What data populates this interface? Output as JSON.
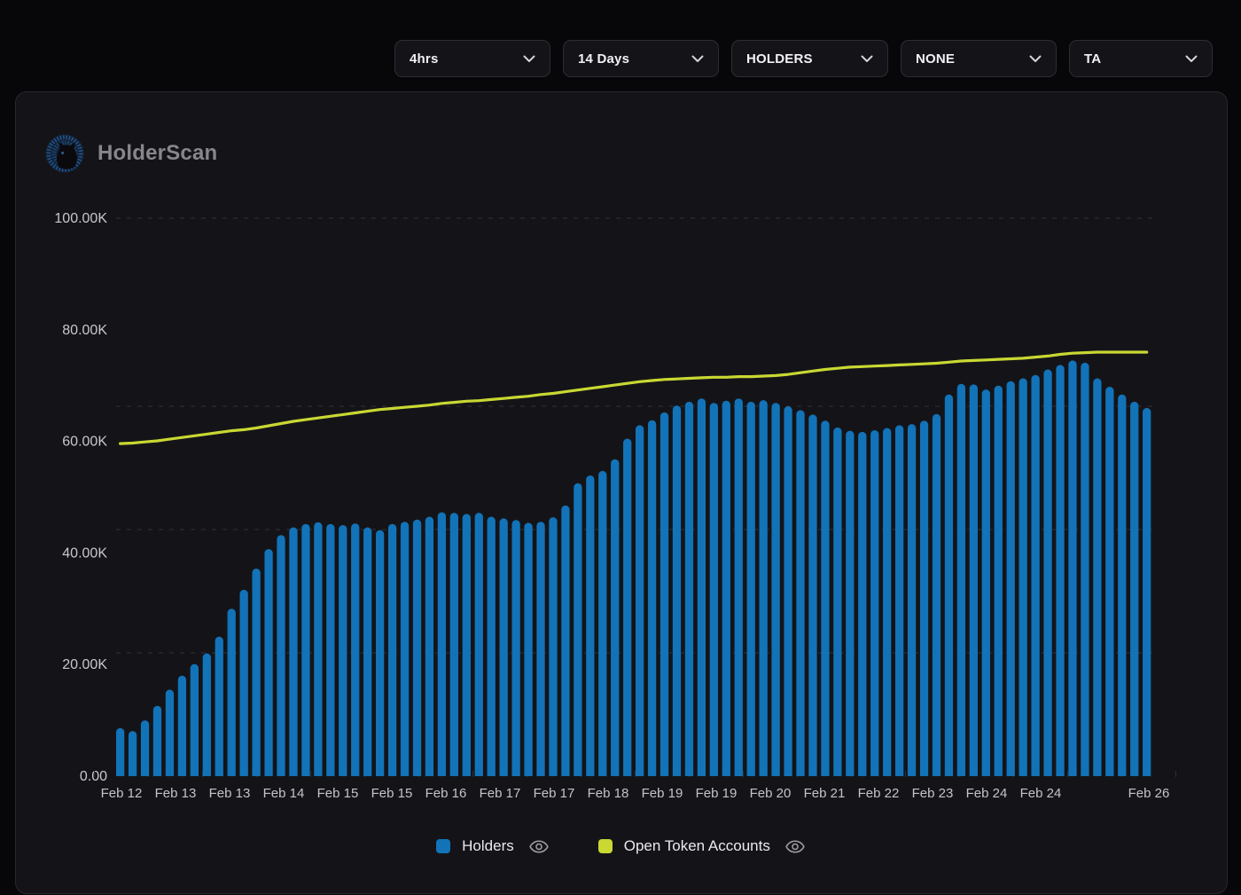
{
  "controls": {
    "dropdowns": [
      {
        "id": "interval",
        "label": "4hrs"
      },
      {
        "id": "range",
        "label": "14 Days"
      },
      {
        "id": "metric",
        "label": "HOLDERS"
      },
      {
        "id": "overlay",
        "label": "NONE"
      },
      {
        "id": "ta",
        "label": "TA"
      }
    ]
  },
  "logo": {
    "text": "HolderScan"
  },
  "colors": {
    "page_bg": "#07070a",
    "panel_bg": "#141418",
    "panel_border": "#27272d",
    "grid": "#4a4a52",
    "axis_text": "#c7c7cd",
    "bars": "#1273b8",
    "line": "#c9d832",
    "legend_text": "#eaeaed",
    "eye_icon": "#9c9ca3"
  },
  "chart_data": {
    "type": "bar",
    "title": "",
    "xlabel": "",
    "ylabel": "",
    "ylim_k": [
      0,
      100
    ],
    "grid": true,
    "gridlines_k": [
      100,
      66.3,
      44.2,
      22.1
    ],
    "legend_position": "bottom",
    "y_tick_labels": [
      "100.00K",
      "80.00K",
      "60.00K",
      "40.00K",
      "20.00K",
      "0.00"
    ],
    "y_tick_values_k": [
      100,
      80,
      60,
      40,
      20,
      0
    ],
    "x_tick_labels": [
      "Feb 12",
      "Feb 13",
      "Feb 13",
      "Feb 14",
      "Feb 15",
      "Feb 15",
      "Feb 16",
      "Feb 17",
      "Feb 17",
      "Feb 18",
      "Feb 19",
      "Feb 19",
      "Feb 20",
      "Feb 21",
      "Feb 22",
      "Feb 23",
      "Feb 24",
      "Feb 24",
      "",
      "Feb 26"
    ],
    "series": [
      {
        "name": "Holders",
        "type": "bar",
        "color": "#1273b8",
        "values_k": [
          8.6,
          8.1,
          10.0,
          12.6,
          15.5,
          18.0,
          20.1,
          22.0,
          25.0,
          30.0,
          33.4,
          37.2,
          40.7,
          43.2,
          44.6,
          45.2,
          45.5,
          45.2,
          45.0,
          45.3,
          44.6,
          44.1,
          45.2,
          45.6,
          46.0,
          46.5,
          47.3,
          47.2,
          47.0,
          47.2,
          46.5,
          46.2,
          45.9,
          45.4,
          45.6,
          46.4,
          48.5,
          52.5,
          53.9,
          54.7,
          56.8,
          60.5,
          62.9,
          63.8,
          65.2,
          66.4,
          67.1,
          67.7,
          66.9,
          67.3,
          67.7,
          67.1,
          67.4,
          66.9,
          66.3,
          65.6,
          64.8,
          63.7,
          62.5,
          61.9,
          61.7,
          62.0,
          62.4,
          62.9,
          63.1,
          63.7,
          64.9,
          68.4,
          70.3,
          70.2,
          69.3,
          70.0,
          70.8,
          71.3,
          71.9,
          72.9,
          73.7,
          74.5,
          74.1,
          71.3,
          69.8,
          68.4,
          67.1,
          66.0
        ]
      },
      {
        "name": "Open Token Accounts",
        "type": "line",
        "color": "#c9d832",
        "values_k": [
          59.6,
          59.7,
          59.9,
          60.1,
          60.4,
          60.7,
          61.0,
          61.3,
          61.6,
          61.9,
          62.1,
          62.4,
          62.8,
          63.2,
          63.6,
          63.9,
          64.2,
          64.5,
          64.8,
          65.1,
          65.4,
          65.7,
          65.9,
          66.1,
          66.3,
          66.5,
          66.8,
          67.0,
          67.2,
          67.3,
          67.5,
          67.7,
          67.9,
          68.1,
          68.4,
          68.6,
          68.9,
          69.2,
          69.5,
          69.8,
          70.1,
          70.4,
          70.7,
          70.9,
          71.1,
          71.2,
          71.3,
          71.4,
          71.5,
          71.5,
          71.6,
          71.6,
          71.7,
          71.8,
          72.0,
          72.3,
          72.6,
          72.9,
          73.1,
          73.3,
          73.4,
          73.5,
          73.6,
          73.7,
          73.8,
          73.9,
          74.0,
          74.2,
          74.4,
          74.5,
          74.6,
          74.7,
          74.8,
          74.9,
          75.1,
          75.3,
          75.6,
          75.8,
          75.9,
          76.0,
          76.0,
          76.0,
          76.0,
          76.0
        ]
      }
    ]
  }
}
